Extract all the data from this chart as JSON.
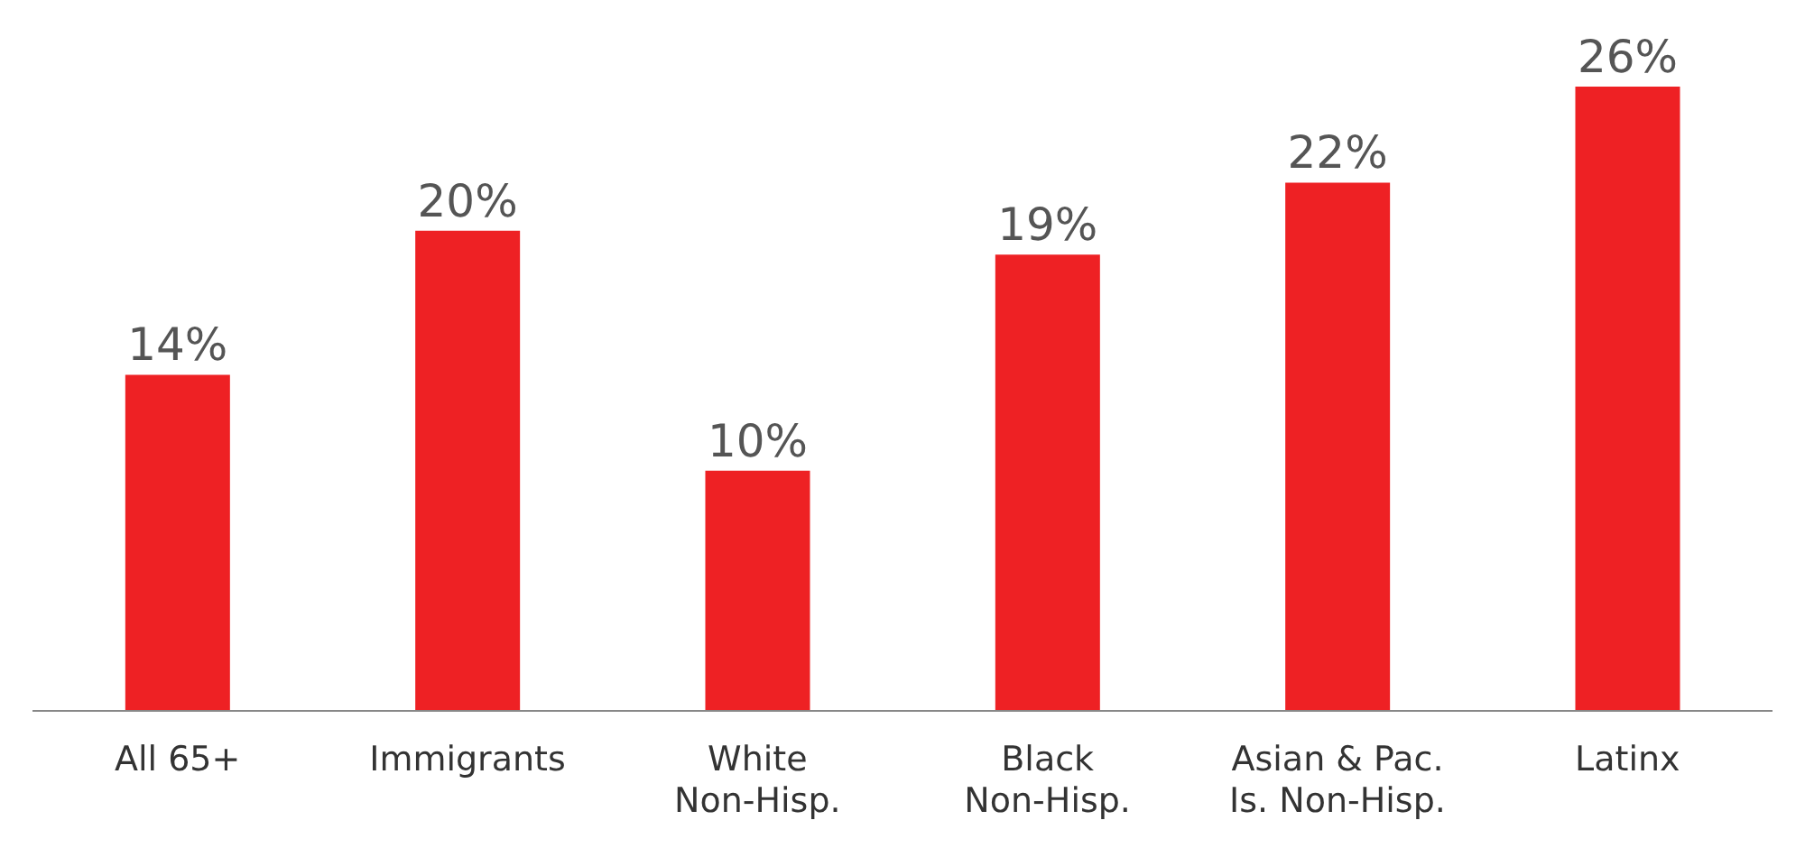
{
  "chart_data": {
    "type": "bar",
    "categories": [
      "All 65+",
      "Immigrants",
      "White Non-Hisp.",
      "Black Non-Hisp.",
      "Asian & Pac. Is. Non-Hisp.",
      "Latinx"
    ],
    "values": [
      14,
      20,
      10,
      19,
      22,
      26
    ],
    "value_labels": [
      "14%",
      "20%",
      "10%",
      "19%",
      "22%",
      "26%"
    ],
    "color": "#ee2124",
    "ylim": [
      0,
      26
    ],
    "grid": false,
    "legend": false
  }
}
